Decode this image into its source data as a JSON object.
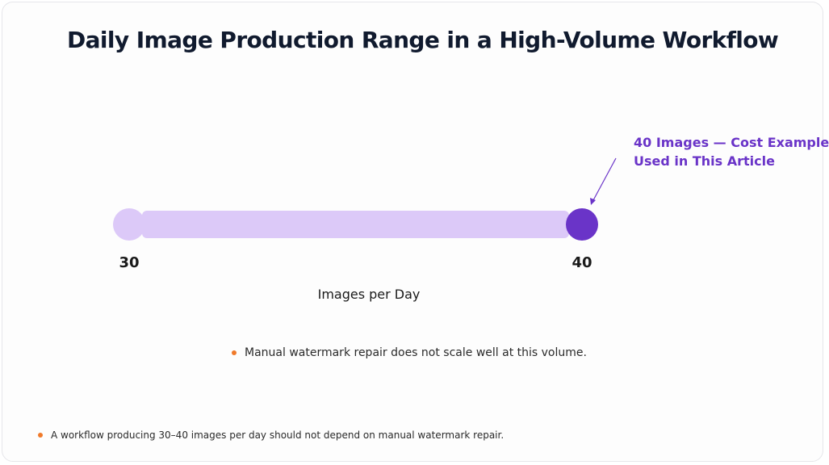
{
  "title": "Daily Image Production Range in a High-Volume Workflow",
  "chart_data": {
    "type": "range",
    "range": {
      "min": 30,
      "max": 40
    },
    "xlim": [
      30,
      40
    ],
    "xlabel": "Images per Day",
    "tick_labels": [
      "30",
      "40"
    ],
    "highlight_value": 40,
    "annotation": {
      "line1": "40 Images — Cost Example",
      "line2": "Used in This Article"
    },
    "colors": {
      "range_bar": "#dcc9f8",
      "start_dot": "#dcc9f8",
      "end_dot": "#6a34c8",
      "annotation": "#6a34c8"
    }
  },
  "note": {
    "text": "Manual watermark repair does not scale well at this volume.",
    "bullet_color": "#f07a2a"
  },
  "footnote": {
    "text": "A workflow producing 30–40 images per day should not depend on manual watermark repair.",
    "bullet_color": "#f07a2a"
  }
}
